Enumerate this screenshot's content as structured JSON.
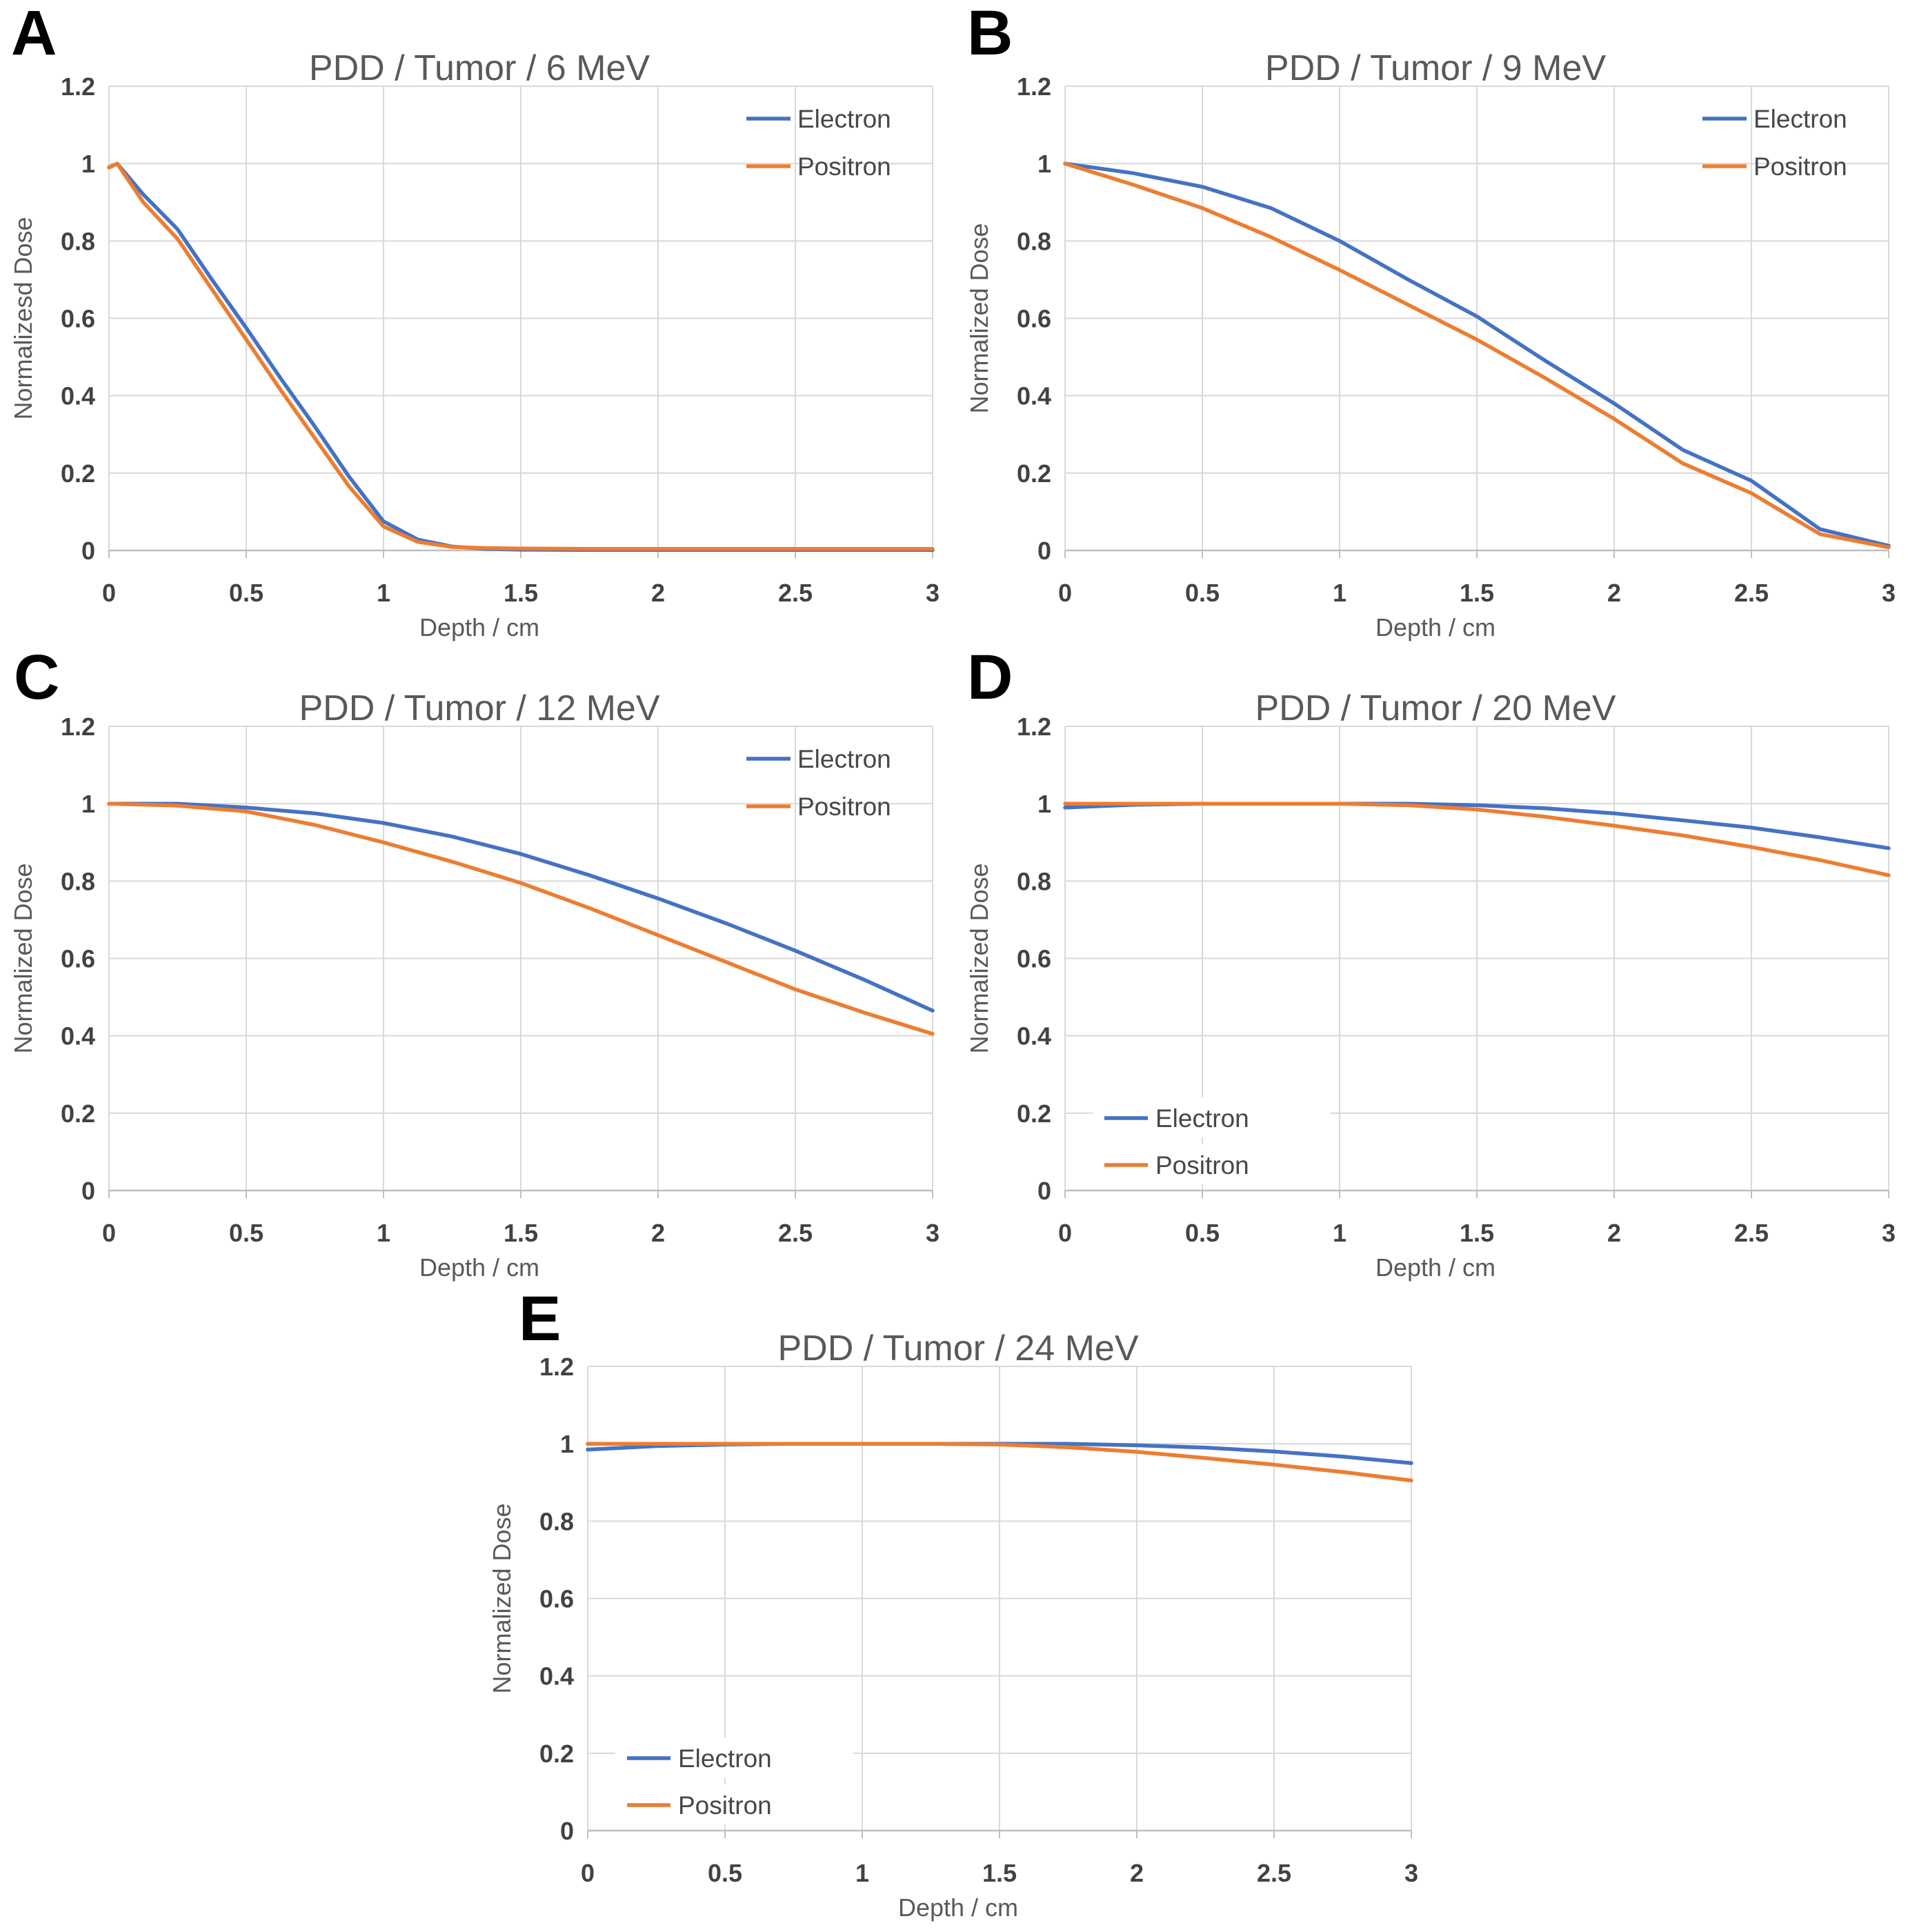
{
  "figure_title": "PDD depth-dose comparison panels",
  "colors": {
    "electron": "#4472C4",
    "positron": "#ED7D31",
    "gridline": "#D9D9D9",
    "axis_line": "#BFBFBF",
    "tick_text": "#424242",
    "title_text": "#595959",
    "panel_letter": "#000000",
    "background": "#FFFFFF"
  },
  "chart_data": [
    {
      "type": "line",
      "panel_label": "A",
      "title": "PDD / Tumor / 6 MeV",
      "xlabel": "Depth / cm",
      "ylabel": "Normalizesd Dose",
      "xlim": [
        0,
        3
      ],
      "ylim": [
        0,
        1.2
      ],
      "xticks": [
        0,
        0.5,
        1,
        1.5,
        2,
        2.5,
        3
      ],
      "xtick_labels": [
        "0",
        "0.5",
        "1",
        "1.5",
        "2",
        "2.5",
        "3"
      ],
      "yticks": [
        0,
        0.2,
        0.4,
        0.6,
        0.8,
        1,
        1.2
      ],
      "ytick_labels": [
        "0",
        "0.2",
        "0.4",
        "0.6",
        "0.8",
        "1",
        "1.2"
      ],
      "grid": true,
      "legend_position": "top-right",
      "x": [
        0,
        0.03,
        0.125,
        0.25,
        0.375,
        0.5,
        0.625,
        0.75,
        0.875,
        1,
        1.125,
        1.25,
        1.375,
        1.5,
        1.75,
        2,
        2.25,
        2.5,
        2.75,
        3
      ],
      "series": [
        {
          "name": "Electron",
          "color": "#4472C4",
          "y": [
            0.99,
            1.0,
            0.92,
            0.83,
            0.7,
            0.575,
            0.445,
            0.32,
            0.19,
            0.075,
            0.028,
            0.01,
            0.004,
            0.002,
            0.001,
            0.001,
            0.001,
            0.001,
            0.001,
            0.001
          ]
        },
        {
          "name": "Positron",
          "color": "#ED7D31",
          "y": [
            0.99,
            1.0,
            0.9,
            0.805,
            0.675,
            0.545,
            0.415,
            0.29,
            0.165,
            0.062,
            0.022,
            0.009,
            0.006,
            0.005,
            0.004,
            0.004,
            0.004,
            0.004,
            0.004,
            0.004
          ]
        }
      ]
    },
    {
      "type": "line",
      "panel_label": "B",
      "title": "PDD / Tumor / 9 MeV",
      "xlabel": "Depth / cm",
      "ylabel": "Normalized Dose",
      "xlim": [
        0,
        3
      ],
      "ylim": [
        0,
        1.2
      ],
      "xticks": [
        0,
        0.5,
        1,
        1.5,
        2,
        2.5,
        3
      ],
      "xtick_labels": [
        "0",
        "0.5",
        "1",
        "1.5",
        "2",
        "2.5",
        "3"
      ],
      "yticks": [
        0,
        0.2,
        0.4,
        0.6,
        0.8,
        1,
        1.2
      ],
      "ytick_labels": [
        "0",
        "0.2",
        "0.4",
        "0.6",
        "0.8",
        "1",
        "1.2"
      ],
      "grid": true,
      "legend_position": "top-right",
      "x": [
        0,
        0.25,
        0.5,
        0.75,
        1,
        1.25,
        1.5,
        1.75,
        2,
        2.25,
        2.5,
        2.75,
        3
      ],
      "series": [
        {
          "name": "Electron",
          "color": "#4472C4",
          "y": [
            1.0,
            0.975,
            0.94,
            0.885,
            0.8,
            0.7,
            0.605,
            0.49,
            0.38,
            0.26,
            0.18,
            0.055,
            0.012
          ]
        },
        {
          "name": "Positron",
          "color": "#ED7D31",
          "y": [
            1.0,
            0.945,
            0.885,
            0.81,
            0.725,
            0.635,
            0.545,
            0.445,
            0.34,
            0.225,
            0.148,
            0.042,
            0.008
          ]
        }
      ]
    },
    {
      "type": "line",
      "panel_label": "C",
      "title": "PDD / Tumor / 12 MeV",
      "xlabel": "Depth / cm",
      "ylabel": "Normalized Dose",
      "xlim": [
        0,
        3
      ],
      "ylim": [
        0,
        1.2
      ],
      "xticks": [
        0,
        0.5,
        1,
        1.5,
        2,
        2.5,
        3
      ],
      "xtick_labels": [
        "0",
        "0.5",
        "1",
        "1.5",
        "2",
        "2.5",
        "3"
      ],
      "yticks": [
        0,
        0.2,
        0.4,
        0.6,
        0.8,
        1,
        1.2
      ],
      "ytick_labels": [
        "0",
        "0.2",
        "0.4",
        "0.6",
        "0.8",
        "1",
        "1.2"
      ],
      "grid": true,
      "legend_position": "top-right",
      "x": [
        0,
        0.25,
        0.5,
        0.75,
        1,
        1.25,
        1.5,
        1.75,
        2,
        2.25,
        2.5,
        2.75,
        3
      ],
      "series": [
        {
          "name": "Electron",
          "color": "#4472C4",
          "y": [
            1.0,
            1.0,
            0.99,
            0.975,
            0.95,
            0.915,
            0.87,
            0.815,
            0.755,
            0.69,
            0.62,
            0.545,
            0.465
          ]
        },
        {
          "name": "Positron",
          "color": "#ED7D31",
          "y": [
            1.0,
            0.995,
            0.98,
            0.945,
            0.9,
            0.85,
            0.795,
            0.73,
            0.66,
            0.59,
            0.52,
            0.46,
            0.405
          ]
        }
      ]
    },
    {
      "type": "line",
      "panel_label": "D",
      "title": "PDD / Tumor / 20 MeV",
      "xlabel": "Depth / cm",
      "ylabel": "Normalized Dose",
      "xlim": [
        0,
        3
      ],
      "ylim": [
        0,
        1.2
      ],
      "xticks": [
        0,
        0.5,
        1,
        1.5,
        2,
        2.5,
        3
      ],
      "xtick_labels": [
        "0",
        "0.5",
        "1",
        "1.5",
        "2",
        "2.5",
        "3"
      ],
      "yticks": [
        0,
        0.2,
        0.4,
        0.6,
        0.8,
        1,
        1.2
      ],
      "ytick_labels": [
        "0",
        "0.2",
        "0.4",
        "0.6",
        "0.8",
        "1",
        "1.2"
      ],
      "grid": true,
      "legend_position": "bottom-left",
      "x": [
        0,
        0.25,
        0.5,
        0.75,
        1,
        1.25,
        1.5,
        1.75,
        2,
        2.25,
        2.5,
        2.75,
        3
      ],
      "series": [
        {
          "name": "Electron",
          "color": "#4472C4",
          "y": [
            0.99,
            0.997,
            1.0,
            1.0,
            1.0,
            1.0,
            0.996,
            0.988,
            0.975,
            0.957,
            0.938,
            0.913,
            0.885
          ]
        },
        {
          "name": "Positron",
          "color": "#ED7D31",
          "y": [
            1.0,
            1.0,
            1.0,
            1.0,
            1.0,
            0.996,
            0.985,
            0.966,
            0.943,
            0.918,
            0.888,
            0.854,
            0.815
          ]
        }
      ]
    },
    {
      "type": "line",
      "panel_label": "E",
      "title": "PDD / Tumor / 24 MeV",
      "xlabel": "Depth / cm",
      "ylabel": "Normalized Dose",
      "xlim": [
        0,
        3
      ],
      "ylim": [
        0,
        1.2
      ],
      "xticks": [
        0,
        0.5,
        1,
        1.5,
        2,
        2.5,
        3
      ],
      "xtick_labels": [
        "0",
        "0.5",
        "1",
        "1.5",
        "2",
        "2.5",
        "3"
      ],
      "yticks": [
        0,
        0.2,
        0.4,
        0.6,
        0.8,
        1,
        1.2
      ],
      "ytick_labels": [
        "0",
        "0.2",
        "0.4",
        "0.6",
        "0.8",
        "1",
        "1.2"
      ],
      "grid": true,
      "legend_position": "bottom-left",
      "x": [
        0,
        0.25,
        0.5,
        0.75,
        1,
        1.25,
        1.5,
        1.75,
        2,
        2.25,
        2.5,
        2.75,
        3
      ],
      "series": [
        {
          "name": "Electron",
          "color": "#4472C4",
          "y": [
            0.985,
            0.994,
            0.998,
            1.0,
            1.0,
            1.0,
            1.0,
            1.0,
            0.996,
            0.99,
            0.98,
            0.967,
            0.95
          ]
        },
        {
          "name": "Positron",
          "color": "#ED7D31",
          "y": [
            1.0,
            1.0,
            1.0,
            1.0,
            1.0,
            1.0,
            0.998,
            0.991,
            0.979,
            0.963,
            0.946,
            0.927,
            0.905
          ]
        }
      ]
    }
  ]
}
